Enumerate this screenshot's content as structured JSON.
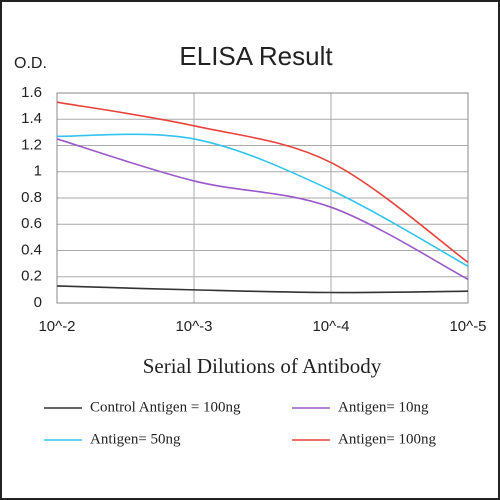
{
  "chart_data": {
    "type": "line",
    "title": "ELISA Result",
    "ylabel": "O.D.",
    "xlabel": "Serial Dilutions  of Antibody",
    "categories": [
      "10^-2",
      "10^-3",
      "10^-4",
      "10^-5"
    ],
    "series": [
      {
        "name": "Control Antigen = 100ng",
        "color": "#333333",
        "values": [
          0.13,
          0.1,
          0.08,
          0.09
        ]
      },
      {
        "name": "Antigen= 10ng",
        "color": "#9b59c9",
        "values": [
          1.25,
          0.93,
          0.73,
          0.18
        ]
      },
      {
        "name": "Antigen= 50ng",
        "color": "#33c3f0",
        "values": [
          1.27,
          1.25,
          0.86,
          0.28
        ]
      },
      {
        "name": "Antigen= 100ng",
        "color": "#e8413c",
        "values": [
          1.53,
          1.35,
          1.07,
          0.31
        ]
      }
    ],
    "ylim": [
      0,
      1.6
    ],
    "yticks": [
      0,
      0.2,
      0.4,
      0.6,
      0.8,
      1,
      1.2,
      1.4,
      1.6
    ],
    "grid": true
  }
}
